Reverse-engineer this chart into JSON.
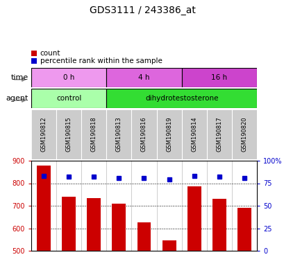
{
  "title": "GDS3111 / 243386_at",
  "samples": [
    "GSM190812",
    "GSM190815",
    "GSM190818",
    "GSM190813",
    "GSM190816",
    "GSM190819",
    "GSM190814",
    "GSM190817",
    "GSM190820"
  ],
  "counts": [
    878,
    740,
    735,
    708,
    625,
    545,
    786,
    730,
    690
  ],
  "percentiles": [
    83,
    82,
    82,
    81,
    81,
    79,
    83,
    82,
    81
  ],
  "ylim_left": [
    500,
    900
  ],
  "ylim_right": [
    0,
    100
  ],
  "yticks_left": [
    500,
    600,
    700,
    800,
    900
  ],
  "yticks_right": [
    0,
    25,
    50,
    75,
    100
  ],
  "bar_color": "#cc0000",
  "dot_color": "#0000cc",
  "grid_color": "#000000",
  "agent_groups": [
    {
      "label": "control",
      "start": 0,
      "end": 3,
      "color": "#aaffaa"
    },
    {
      "label": "dihydrotestosterone",
      "start": 3,
      "end": 9,
      "color": "#33dd33"
    }
  ],
  "time_groups": [
    {
      "label": "0 h",
      "start": 0,
      "end": 3,
      "color": "#ee99ee"
    },
    {
      "label": "4 h",
      "start": 3,
      "end": 6,
      "color": "#dd66dd"
    },
    {
      "label": "16 h",
      "start": 6,
      "end": 9,
      "color": "#cc44cc"
    }
  ],
  "axis_label_color_left": "#cc0000",
  "axis_label_color_right": "#0000cc",
  "background_color": "#ffffff",
  "plot_bg_color": "#ffffff",
  "tick_label_bg": "#cccccc",
  "sample_label_fontsize": 6,
  "bar_fontsize": 8,
  "title_fontsize": 10
}
